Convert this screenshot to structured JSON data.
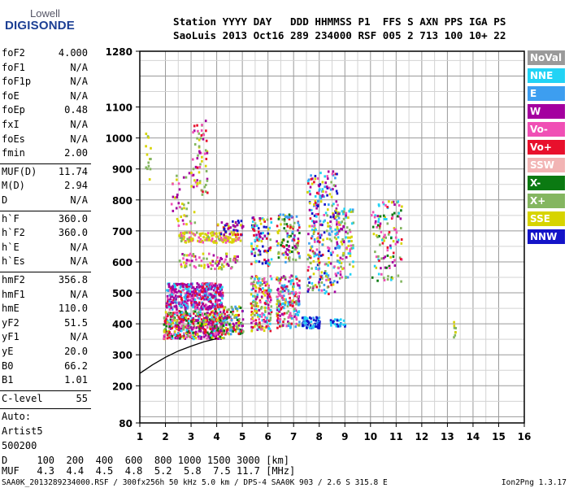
{
  "header": {
    "logo_line1": "Lowell",
    "logo_line2": "DIGISONDE",
    "line1": "Station YYYY DAY   DDD HHMMSS P1  FFS S AXN PPS IGA PS",
    "line2": "SaoLuis 2013 Oct16 289 234000 RSF 005 2 713 100 10+ 22"
  },
  "params": [
    {
      "label": "foF2",
      "value": "4.000"
    },
    {
      "label": "foF1",
      "value": "N/A"
    },
    {
      "label": "foF1p",
      "value": "N/A"
    },
    {
      "label": "foE",
      "value": "N/A"
    },
    {
      "label": "foEp",
      "value": "0.48"
    },
    {
      "label": "fxI",
      "value": "N/A"
    },
    {
      "label": "foEs",
      "value": "N/A"
    },
    {
      "label": "fmin",
      "value": "2.00"
    },
    {
      "sep": true
    },
    {
      "label": "MUF(D)",
      "value": "11.74"
    },
    {
      "label": "M(D)",
      "value": "2.94"
    },
    {
      "label": "D",
      "value": "N/A"
    },
    {
      "sep": true
    },
    {
      "label": "h`F",
      "value": "360.0"
    },
    {
      "label": "h`F2",
      "value": "360.0"
    },
    {
      "label": "h`E",
      "value": "N/A"
    },
    {
      "label": "h`Es",
      "value": "N/A"
    },
    {
      "sep": true
    },
    {
      "label": "hmF2",
      "value": "356.8"
    },
    {
      "label": "hmF1",
      "value": "N/A"
    },
    {
      "label": "hmE",
      "value": "110.0"
    },
    {
      "label": "yF2",
      "value": "51.5"
    },
    {
      "label": "yF1",
      "value": "N/A"
    },
    {
      "label": "yE",
      "value": "20.0"
    },
    {
      "label": "B0",
      "value": "66.2"
    },
    {
      "label": "B1",
      "value": "1.01"
    },
    {
      "sep": true
    },
    {
      "label": "C-level",
      "value": "55"
    },
    {
      "sep": true
    },
    {
      "label": "Auto:",
      "value": ""
    },
    {
      "label": "Artist5",
      "value": ""
    },
    {
      "label": "500200",
      "value": ""
    }
  ],
  "legend": [
    {
      "label": "NoVal",
      "color": "#9a9a9a"
    },
    {
      "label": "NNE",
      "color": "#22d3f5"
    },
    {
      "label": "E",
      "color": "#3d9ef0"
    },
    {
      "label": "W",
      "color": "#a4009f"
    },
    {
      "label": "Vo-",
      "color": "#f04fb5"
    },
    {
      "label": "Vo+",
      "color": "#e8102c"
    },
    {
      "label": "SSW",
      "color": "#f2b4b4"
    },
    {
      "label": "X-",
      "color": "#0b7a12"
    },
    {
      "label": "X+",
      "color": "#84b660"
    },
    {
      "label": "SSE",
      "color": "#d7d400"
    },
    {
      "label": "NNW",
      "color": "#1414c8"
    }
  ],
  "footer": {
    "d_row": "D     100  200  400  600  800 1000 1500 3000 [km]",
    "muf_row": "MUF   4.3  4.4  4.5  4.8  5.2  5.8  7.5 11.7 [MHz]",
    "file_info": "SAA0K_2013289234000.RSF / 300fx256h 50 kHz 5.0 km / DPS-4 SAA0K 903 / 2.6 S 315.8 E",
    "version": "Ion2Png 1.3.17"
  },
  "chart_data": {
    "type": "scatter",
    "title": "",
    "xlabel": "",
    "ylabel": "",
    "x_ticks": [
      "1",
      "2",
      "3",
      "4",
      "5",
      "6",
      "7",
      "8",
      "9",
      "10",
      "11",
      "12",
      "13",
      "14",
      "15",
      "16"
    ],
    "y_ticks": [
      "80",
      "200",
      "300",
      "400",
      "500",
      "600",
      "700",
      "800",
      "900",
      "1000",
      "1100",
      "1280"
    ],
    "xlim": [
      1,
      16
    ],
    "ylim": [
      80,
      1280
    ],
    "y_scale": "virtual height (km)",
    "grid": true,
    "clusters": [
      {
        "x": [
          1.9,
          4.3
        ],
        "y": [
          355,
          445
        ],
        "n": 520,
        "colors": [
          "Vo+",
          "Vo-",
          "X-",
          "X+",
          "SSE",
          "W",
          "NNE",
          "Vo+",
          "W"
        ]
      },
      {
        "x": [
          2.0,
          4.2
        ],
        "y": [
          450,
          535
        ],
        "n": 460,
        "colors": [
          "W",
          "Vo-",
          "W",
          "Vo+",
          "W",
          "NNE",
          "E"
        ]
      },
      {
        "x": [
          2.5,
          4.9
        ],
        "y": [
          665,
          700
        ],
        "n": 140,
        "colors": [
          "SSE",
          "SSE",
          "X+",
          "SSE",
          "Vo-"
        ]
      },
      {
        "x": [
          2.4,
          4.8
        ],
        "y": [
          580,
          630
        ],
        "n": 90,
        "colors": [
          "SSE",
          "X+",
          "W",
          "Vo-"
        ]
      },
      {
        "x": [
          4.2,
          5.0
        ],
        "y": [
          370,
          460
        ],
        "n": 110,
        "colors": [
          "X+",
          "SSE",
          "Vo+",
          "X-",
          "W",
          "E"
        ]
      },
      {
        "x": [
          4.0,
          5.0
        ],
        "y": [
          690,
          740
        ],
        "n": 50,
        "colors": [
          "NNW",
          "Vo+",
          "SSE",
          "W"
        ]
      },
      {
        "x": [
          5.3,
          6.1
        ],
        "y": [
          380,
          560
        ],
        "n": 190,
        "colors": [
          "W",
          "Vo-",
          "SSE",
          "X+",
          "NNE",
          "Vo+"
        ]
      },
      {
        "x": [
          5.3,
          6.1
        ],
        "y": [
          590,
          750
        ],
        "n": 90,
        "colors": [
          "SSE",
          "X+",
          "W",
          "NNW",
          "Vo+",
          "NNE"
        ]
      },
      {
        "x": [
          6.3,
          7.2
        ],
        "y": [
          390,
          560
        ],
        "n": 200,
        "colors": [
          "W",
          "Vo-",
          "X+",
          "SSE",
          "Vo+",
          "NNE",
          "E"
        ]
      },
      {
        "x": [
          6.3,
          7.2
        ],
        "y": [
          600,
          760
        ],
        "n": 110,
        "colors": [
          "SSE",
          "X+",
          "W",
          "Vo+",
          "X-",
          "E"
        ]
      },
      {
        "x": [
          7.3,
          8.0
        ],
        "y": [
          390,
          425
        ],
        "n": 80,
        "colors": [
          "NNW",
          "NNW",
          "NNE",
          "E"
        ]
      },
      {
        "x": [
          7.5,
          8.7
        ],
        "y": [
          500,
          900
        ],
        "n": 280,
        "colors": [
          "NNE",
          "E",
          "SSE",
          "X+",
          "Vo+",
          "W",
          "NNW",
          "Vo-"
        ]
      },
      {
        "x": [
          8.4,
          9.0
        ],
        "y": [
          395,
          420
        ],
        "n": 30,
        "colors": [
          "NNW",
          "NNE"
        ]
      },
      {
        "x": [
          8.6,
          9.3
        ],
        "y": [
          550,
          780
        ],
        "n": 110,
        "colors": [
          "E",
          "NNE",
          "X+",
          "SSE",
          "Vo-",
          "W"
        ]
      },
      {
        "x": [
          10.0,
          11.2
        ],
        "y": [
          540,
          800
        ],
        "n": 120,
        "colors": [
          "Vo+",
          "W",
          "X+",
          "SSE",
          "NNE",
          "Vo-",
          "X-"
        ]
      },
      {
        "x": [
          2.2,
          3.2
        ],
        "y": [
          720,
          900
        ],
        "n": 45,
        "colors": [
          "SSE",
          "X+",
          "Vo-",
          "W"
        ]
      },
      {
        "x": [
          3.0,
          3.6
        ],
        "y": [
          820,
          1060
        ],
        "n": 60,
        "colors": [
          "SSE",
          "Vo-",
          "X+",
          "W",
          "Vo+"
        ]
      },
      {
        "x": [
          1.2,
          1.4
        ],
        "y": [
          860,
          1020
        ],
        "n": 14,
        "colors": [
          "SSE",
          "X+"
        ]
      },
      {
        "x": [
          13.2,
          13.3
        ],
        "y": [
          360,
          410
        ],
        "n": 8,
        "colors": [
          "SSE",
          "X+"
        ]
      }
    ],
    "trace_profile": {
      "x": [
        1.0,
        1.5,
        2.0,
        2.5,
        3.0,
        3.5,
        4.0
      ],
      "y": [
        240,
        268,
        292,
        312,
        328,
        342,
        352
      ]
    }
  }
}
